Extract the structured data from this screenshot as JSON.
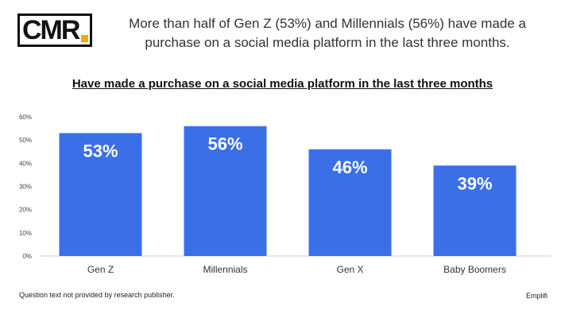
{
  "logo": {
    "text": "CMR",
    "accent_color": "#f2a900"
  },
  "headline": "More than half of Gen Z (53%) and Millennials (56%) have made a purchase on a social media platform in the last three months.",
  "footnote": "Question text not provided by research publisher.",
  "source": "Emplifi",
  "chart_data": {
    "type": "bar",
    "title": "Have made a purchase on a social media platform in the last three months",
    "categories": [
      "Gen Z",
      "Millennials",
      "Gen X",
      "Baby Boomers"
    ],
    "values": [
      53,
      56,
      46,
      39
    ],
    "data_labels": [
      "53%",
      "56%",
      "46%",
      "39%"
    ],
    "y_ticks": [
      "0%",
      "10%",
      "20%",
      "30%",
      "40%",
      "50%",
      "60%"
    ],
    "ylim": [
      0,
      60
    ],
    "grid": false,
    "legend": "none",
    "bar_color": "#3a6fe8"
  }
}
